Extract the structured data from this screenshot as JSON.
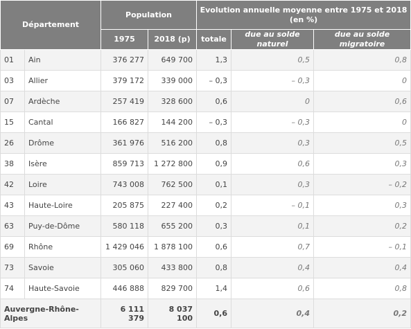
{
  "headers": {
    "departement": "Département",
    "population": "Population",
    "evolution": "Evolution annuelle moyenne entre 1975 et 2018 (en %)",
    "y1975": "1975",
    "y2018": "2018 (p)",
    "totale": "totale",
    "naturel": "due au solde naturel",
    "migratoire": "due au solde migratoire"
  },
  "rows": [
    {
      "code": "01",
      "name": "Ain",
      "p1975": "376 277",
      "p2018": "649 700",
      "totale": "1,3",
      "naturel": "0,5",
      "migratoire": "0,8"
    },
    {
      "code": "03",
      "name": "Allier",
      "p1975": "379 172",
      "p2018": "339 000",
      "totale": "– 0,3",
      "naturel": "– 0,3",
      "migratoire": "0"
    },
    {
      "code": "07",
      "name": "Ardèche",
      "p1975": "257 419",
      "p2018": "328 600",
      "totale": "0,6",
      "naturel": "0",
      "migratoire": "0,6"
    },
    {
      "code": "15",
      "name": "Cantal",
      "p1975": "166 827",
      "p2018": "144 200",
      "totale": "– 0,3",
      "naturel": "– 0,3",
      "migratoire": "0"
    },
    {
      "code": "26",
      "name": "Drôme",
      "p1975": "361 976",
      "p2018": "516 200",
      "totale": "0,8",
      "naturel": "0,3",
      "migratoire": "0,5"
    },
    {
      "code": "38",
      "name": "Isère",
      "p1975": "859 713",
      "p2018": "1 272 800",
      "totale": "0,9",
      "naturel": "0,6",
      "migratoire": "0,3"
    },
    {
      "code": "42",
      "name": "Loire",
      "p1975": "743 008",
      "p2018": "762 500",
      "totale": "0,1",
      "naturel": "0,3",
      "migratoire": "– 0,2"
    },
    {
      "code": "43",
      "name": "Haute-Loire",
      "p1975": "205 875",
      "p2018": "227 400",
      "totale": "0,2",
      "naturel": "– 0,1",
      "migratoire": "0,3"
    },
    {
      "code": "63",
      "name": "Puy-de-Dôme",
      "p1975": "580 118",
      "p2018": "655 200",
      "totale": "0,3",
      "naturel": "0,1",
      "migratoire": "0,2"
    },
    {
      "code": "69",
      "name": "Rhône",
      "p1975": "1 429 046",
      "p2018": "1 878 100",
      "totale": "0,6",
      "naturel": "0,7",
      "migratoire": "– 0,1"
    },
    {
      "code": "73",
      "name": "Savoie",
      "p1975": "305 060",
      "p2018": "433 800",
      "totale": "0,8",
      "naturel": "0,4",
      "migratoire": "0,4"
    },
    {
      "code": "74",
      "name": "Haute-Savoie",
      "p1975": "446 888",
      "p2018": "829 700",
      "totale": "1,4",
      "naturel": "0,6",
      "migratoire": "0,8"
    }
  ],
  "total": {
    "name": "Auvergne-Rhône-Alpes",
    "p1975": "6 111 379",
    "p2018": "8 037 100",
    "totale": "0,6",
    "naturel": "0,4",
    "migratoire": "0,2"
  },
  "colors": {
    "header_bg": "#7f7f7f",
    "alt_row_bg": "#f3f3f3",
    "border": "#dcdcdc"
  }
}
